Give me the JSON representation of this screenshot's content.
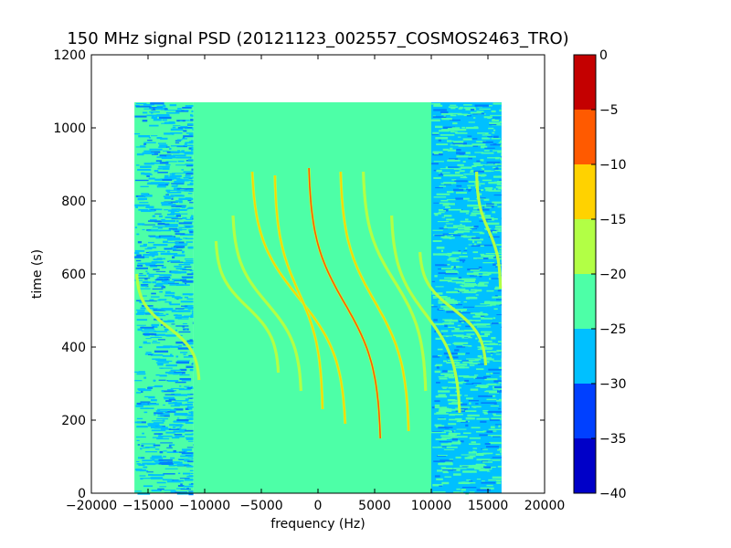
{
  "chart_data": {
    "type": "heatmap",
    "title": "150 MHz signal PSD (20121123_002557_COSMOS2463_TRO)",
    "xlabel": "frequency (Hz)",
    "ylabel": "time (s)",
    "xlim": [
      -20000,
      20000
    ],
    "ylim": [
      0,
      1200
    ],
    "xticks": [
      -20000,
      -15000,
      -10000,
      -5000,
      0,
      5000,
      10000,
      15000,
      20000
    ],
    "yticks": [
      0,
      200,
      400,
      600,
      800,
      1000,
      1200
    ],
    "data_extent": {
      "freq_min": -16200,
      "freq_max": 16200,
      "time_min": 0,
      "time_max": 1070
    },
    "colorbar": {
      "levels": [
        -40,
        -35,
        -30,
        -25,
        -20,
        -15,
        -10,
        -5,
        0
      ],
      "tick_labels": [
        "−40",
        "−35",
        "−30",
        "−25",
        "−20",
        "−15",
        "−10",
        "−5",
        "0"
      ],
      "colors": [
        "#0000c8",
        "#0040ff",
        "#00c0ff",
        "#4dffa7",
        "#b2ff45",
        "#ffd200",
        "#ff5a00",
        "#c40000"
      ]
    },
    "regions": [
      {
        "freq_min": -16200,
        "freq_max": -11000,
        "level": -25,
        "texture": "noisy"
      },
      {
        "freq_min": -11000,
        "freq_max": 10000,
        "level": -22,
        "texture": "flat"
      },
      {
        "freq_min": 10000,
        "freq_max": 16200,
        "level": -28,
        "texture": "noisy"
      }
    ],
    "traces": [
      {
        "t_start": 600,
        "t_end": 310,
        "f_top": -16000,
        "f_bottom": -10500,
        "level": -20
      },
      {
        "t_start": 690,
        "t_end": 330,
        "f_top": -9000,
        "f_bottom": -3500,
        "level": -20
      },
      {
        "t_start": 760,
        "t_end": 280,
        "f_top": -7500,
        "f_bottom": -1500,
        "level": -17
      },
      {
        "t_start": 880,
        "t_end": 190,
        "f_top": -5800,
        "f_bottom": 2400,
        "level": -15
      },
      {
        "t_start": 870,
        "t_end": 230,
        "f_top": -3800,
        "f_bottom": 400,
        "level": -15
      },
      {
        "t_start": 890,
        "t_end": 150,
        "f_top": -800,
        "f_bottom": 5500,
        "level": -8
      },
      {
        "t_start": 880,
        "t_end": 170,
        "f_top": 2000,
        "f_bottom": 8000,
        "level": -15
      },
      {
        "t_start": 880,
        "t_end": 280,
        "f_top": 4000,
        "f_bottom": 9500,
        "level": -17
      },
      {
        "t_start": 760,
        "t_end": 220,
        "f_top": 6500,
        "f_bottom": 12500,
        "level": -20
      },
      {
        "t_start": 660,
        "t_end": 350,
        "f_top": 9000,
        "f_bottom": 14800,
        "level": -20
      },
      {
        "t_start": 880,
        "t_end": 560,
        "f_top": 14000,
        "f_bottom": 16100,
        "level": -20
      }
    ]
  }
}
